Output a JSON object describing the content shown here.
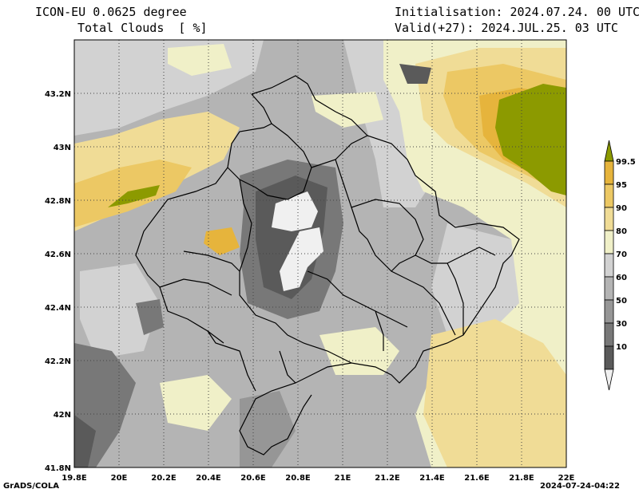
{
  "header": {
    "model": "ICON-EU 0.0625 degree",
    "variable": "Total Clouds  [ %]",
    "init": "Initialisation: 2024.07.24. 00 UTC",
    "valid": "Valid(+27): 2024.JUL.25. 03 UTC"
  },
  "map": {
    "lon_labels": [
      "19.8E",
      "20E",
      "20.2E",
      "20.4E",
      "20.6E",
      "20.8E",
      "21E",
      "21.2E",
      "21.4E",
      "21.6E",
      "21.8E",
      "22E"
    ],
    "lat_labels": [
      "43.2N",
      "43N",
      "42.8N",
      "42.6N",
      "42.4N",
      "42.2N",
      "42N",
      "41.8N"
    ],
    "lon_range": [
      19.8,
      22.0
    ],
    "lat_range": [
      41.8,
      43.4
    ],
    "grid": true
  },
  "colorbar": {
    "levels": [
      "99.5",
      "95",
      "90",
      "80",
      "70",
      "60",
      "50",
      "30",
      "10"
    ],
    "colors": [
      "#8c9a00",
      "#e6b43c",
      "#ecc864",
      "#f0dc96",
      "#f0f0c8",
      "#d2d2d2",
      "#b4b4b4",
      "#969696",
      "#787878",
      "#5a5a5a",
      "#f0f0f0"
    ]
  },
  "footer": {
    "left": "GrADS/COLA",
    "right": "2024-07-24-04:22"
  }
}
